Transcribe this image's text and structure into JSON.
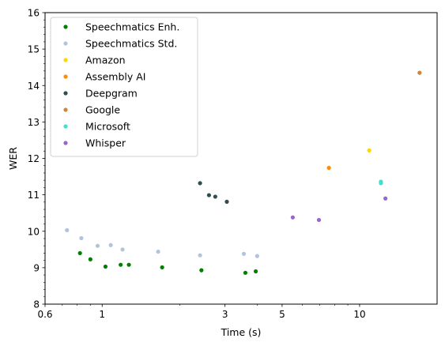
{
  "chart_data": {
    "type": "scatter",
    "xlabel": "Time (s)",
    "ylabel": "WER",
    "xscale": "log",
    "xlim": [
      0.6,
      20
    ],
    "ylim": [
      8,
      16
    ],
    "x_ticks": [
      0.6,
      1,
      3,
      5,
      10
    ],
    "x_tick_labels": [
      "0.6",
      "1",
      "3",
      "5",
      "10"
    ],
    "y_ticks": [
      8,
      9,
      10,
      11,
      12,
      13,
      14,
      15,
      16
    ],
    "y_tick_labels": [
      "8",
      "9",
      "10",
      "11",
      "12",
      "13",
      "14",
      "15",
      "16"
    ],
    "legend_position": "top-left",
    "grid": false,
    "series": [
      {
        "name": "Speechmatics Enh.",
        "color": "#008000",
        "points": [
          {
            "x": 0.82,
            "y": 9.4
          },
          {
            "x": 0.9,
            "y": 9.23
          },
          {
            "x": 1.03,
            "y": 9.03
          },
          {
            "x": 1.18,
            "y": 9.08
          },
          {
            "x": 1.27,
            "y": 9.08
          },
          {
            "x": 1.71,
            "y": 9.01
          },
          {
            "x": 2.43,
            "y": 8.93
          },
          {
            "x": 3.6,
            "y": 8.86
          },
          {
            "x": 3.95,
            "y": 8.9
          }
        ]
      },
      {
        "name": "Speechmatics Std.",
        "color": "#b0c4de",
        "points": [
          {
            "x": 0.73,
            "y": 10.03
          },
          {
            "x": 0.83,
            "y": 9.81
          },
          {
            "x": 0.96,
            "y": 9.6
          },
          {
            "x": 1.08,
            "y": 9.62
          },
          {
            "x": 1.2,
            "y": 9.5
          },
          {
            "x": 1.65,
            "y": 9.44
          },
          {
            "x": 2.4,
            "y": 9.34
          },
          {
            "x": 3.55,
            "y": 9.38
          },
          {
            "x": 4.0,
            "y": 9.32
          }
        ]
      },
      {
        "name": "Amazon",
        "color": "#ffd700",
        "points": [
          {
            "x": 10.9,
            "y": 12.22
          }
        ]
      },
      {
        "name": "Assembly AI",
        "color": "#ff8c00",
        "points": [
          {
            "x": 7.6,
            "y": 11.74
          }
        ]
      },
      {
        "name": "Deepgram",
        "color": "#2f4f4f",
        "points": [
          {
            "x": 2.4,
            "y": 11.32
          },
          {
            "x": 2.6,
            "y": 10.99
          },
          {
            "x": 2.75,
            "y": 10.95
          },
          {
            "x": 3.05,
            "y": 10.81
          }
        ]
      },
      {
        "name": "Google",
        "color": "#cd853f",
        "points": [
          {
            "x": 17.1,
            "y": 14.35
          }
        ]
      },
      {
        "name": "Microsoft",
        "color": "#40e0d0",
        "points": [
          {
            "x": 12.1,
            "y": 11.36
          },
          {
            "x": 12.1,
            "y": 11.32
          }
        ]
      },
      {
        "name": "Whisper",
        "color": "#9966cc",
        "points": [
          {
            "x": 5.5,
            "y": 10.38
          },
          {
            "x": 6.95,
            "y": 10.31
          },
          {
            "x": 12.6,
            "y": 10.9
          }
        ]
      }
    ]
  }
}
